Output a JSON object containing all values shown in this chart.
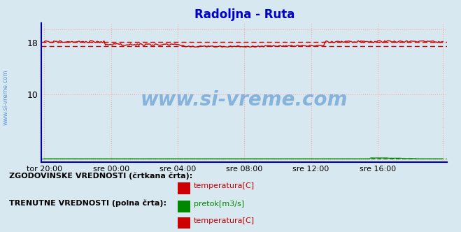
{
  "title": "Radoljna - Ruta",
  "title_color": "#0000cc",
  "bg_color": "#d8e8f0",
  "plot_bg_color": "#d8e8f0",
  "y_ticks": [
    10,
    18
  ],
  "x_tick_pos": [
    0,
    48,
    96,
    144,
    192,
    240,
    287
  ],
  "x_labels": [
    "tor 20:00",
    "sre 00:00",
    "sre 04:00",
    "sre 08:00",
    "sre 12:00",
    "sre 16:00",
    ""
  ],
  "temp_color": "#cc0000",
  "pretok_color": "#008800",
  "hist_temp_value1": 18.1,
  "hist_temp_value2": 17.5,
  "watermark_text": "www.si-vreme.com",
  "watermark_color": "#4488cc",
  "sidebar_text": "www.si-vreme.com",
  "sidebar_color": "#4488cc",
  "legend_hist_label": "ZGODOVINSKE VREDNOSTI (črtkana črta):",
  "legend_curr_label": "TRENUTNE VREDNOSTI (polna črta):",
  "legend_temp_label": "temperatura[C]",
  "legend_pretok_label": "pretok[m3/s]",
  "n_points": 288,
  "figsize": [
    6.59,
    3.32
  ],
  "dpi": 100
}
